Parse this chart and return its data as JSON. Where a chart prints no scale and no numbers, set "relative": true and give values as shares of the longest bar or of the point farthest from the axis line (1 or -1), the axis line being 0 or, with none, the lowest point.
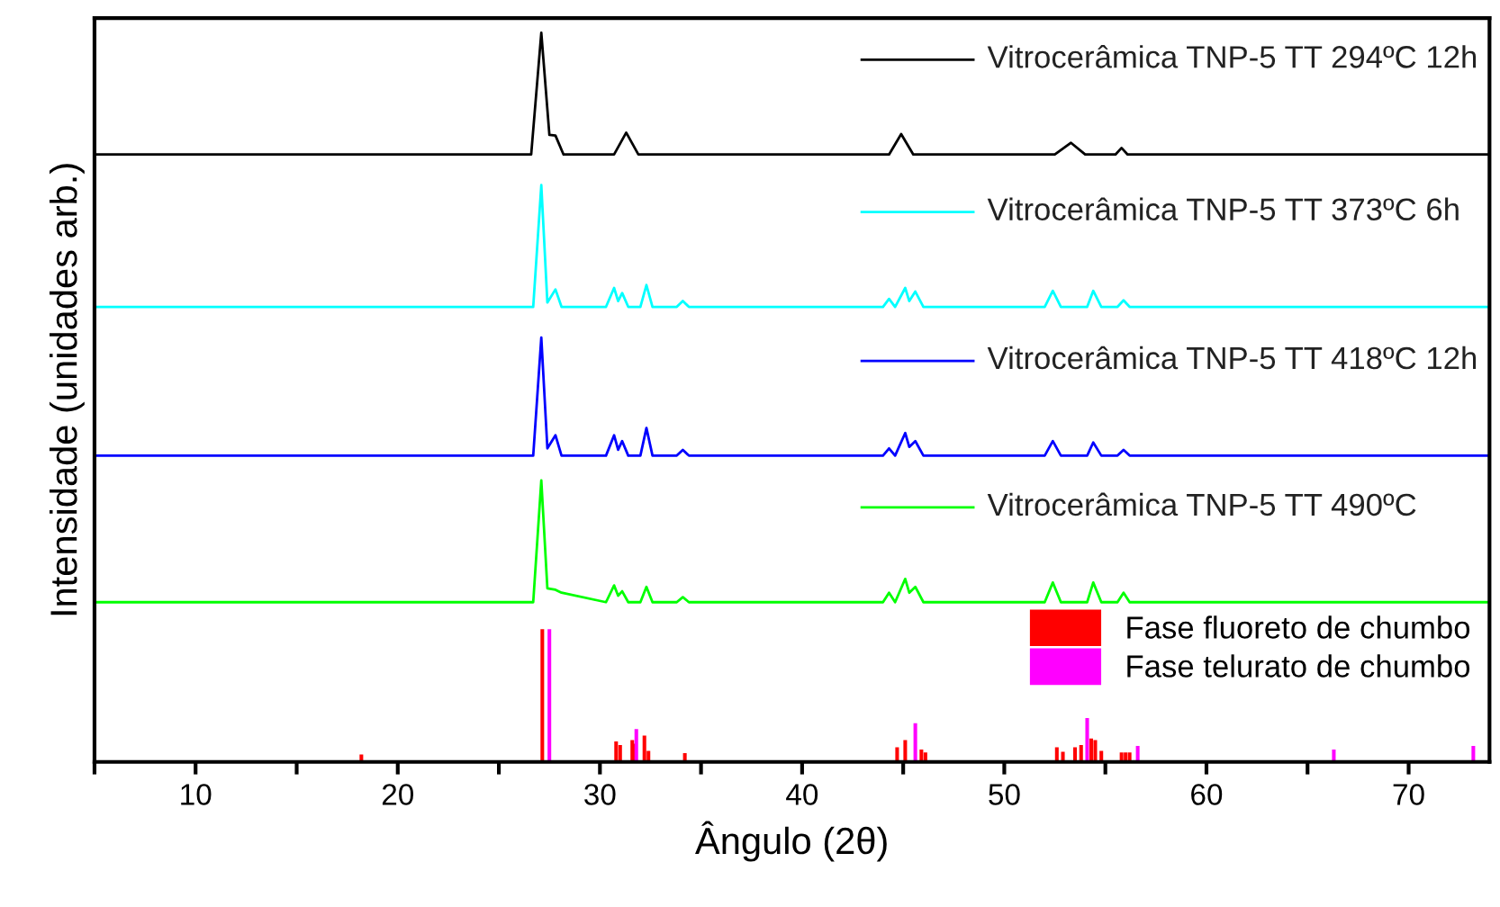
{
  "chart_data": {
    "type": "line",
    "relative": true,
    "xlabel": "Ângulo (2θ)",
    "ylabel": "Intensidade (unidades arb.)",
    "xlim": [
      5,
      74
    ],
    "xticks": [
      {
        "value": 5,
        "label": null
      },
      10,
      {
        "value": 15,
        "label": null
      },
      20,
      {
        "value": 25,
        "label": null
      },
      30,
      {
        "value": 35,
        "label": null
      },
      40,
      {
        "value": 45,
        "label": null
      },
      50,
      {
        "value": 55,
        "label": null
      },
      60,
      {
        "value": 65,
        "label": null
      },
      70
    ],
    "legend": "right",
    "grid": false,
    "line_style": "solid",
    "marker": "none",
    "series": [
      {
        "name": "Vitrocerâmica TNP-5 TT 294ºC 12h",
        "color": "#000000",
        "x": [
          5,
          26.6,
          27.1,
          27.5,
          27.8,
          28.2,
          30.7,
          31.3,
          31.9,
          44.3,
          44.9,
          45.5,
          52.5,
          53.3,
          54.0,
          55.5,
          55.8,
          56.1,
          74
        ],
        "values": [
          0.833,
          0.833,
          1.0,
          0.86,
          0.859,
          0.833,
          0.833,
          0.863,
          0.833,
          0.833,
          0.861,
          0.833,
          0.833,
          0.849,
          0.833,
          0.833,
          0.842,
          0.833,
          0.833
        ]
      },
      {
        "name": "Vitrocerâmica TNP-5 TT 373ºC 6h",
        "color": "#00ffff",
        "x": [
          5,
          26.7,
          27.1,
          27.4,
          27.8,
          28.1,
          30.3,
          30.7,
          30.9,
          31.1,
          31.4,
          32.0,
          32.3,
          32.6,
          33.8,
          34.1,
          34.4,
          44.0,
          44.3,
          44.6,
          45.1,
          45.3,
          45.6,
          46.0,
          52.0,
          52.4,
          52.8,
          54.1,
          54.4,
          54.8,
          55.6,
          55.9,
          56.2,
          74
        ],
        "values": [
          0.624,
          0.624,
          0.791,
          0.63,
          0.648,
          0.624,
          0.624,
          0.65,
          0.632,
          0.643,
          0.624,
          0.624,
          0.654,
          0.624,
          0.624,
          0.632,
          0.624,
          0.624,
          0.635,
          0.624,
          0.65,
          0.632,
          0.645,
          0.624,
          0.624,
          0.646,
          0.624,
          0.624,
          0.646,
          0.624,
          0.624,
          0.633,
          0.624,
          0.624
        ]
      },
      {
        "name": "Vitrocerâmica TNP-5 TT 418ºC 12h",
        "color": "#0000ff",
        "x": [
          5,
          26.7,
          27.1,
          27.4,
          27.8,
          28.1,
          30.3,
          30.7,
          30.9,
          31.1,
          31.4,
          32.0,
          32.3,
          32.6,
          33.8,
          34.1,
          34.4,
          44.0,
          44.3,
          44.6,
          45.1,
          45.3,
          45.6,
          46.0,
          52.0,
          52.4,
          52.8,
          54.1,
          54.4,
          54.8,
          55.6,
          55.9,
          56.2,
          74
        ],
        "values": [
          0.42,
          0.42,
          0.582,
          0.43,
          0.448,
          0.42,
          0.42,
          0.448,
          0.428,
          0.44,
          0.42,
          0.42,
          0.458,
          0.42,
          0.42,
          0.428,
          0.42,
          0.42,
          0.43,
          0.42,
          0.451,
          0.432,
          0.44,
          0.42,
          0.42,
          0.44,
          0.42,
          0.42,
          0.438,
          0.42,
          0.42,
          0.428,
          0.42,
          0.42
        ]
      },
      {
        "name": "Vitrocerâmica TNP-5 TT 490ºC",
        "color": "#00ff00",
        "x": [
          5,
          26.7,
          27.1,
          27.4,
          27.8,
          28.1,
          30.3,
          30.7,
          30.9,
          31.1,
          31.4,
          32.0,
          32.3,
          32.6,
          33.8,
          34.1,
          34.4,
          44.0,
          44.3,
          44.6,
          45.1,
          45.3,
          45.6,
          46.0,
          52.0,
          52.4,
          52.8,
          54.1,
          54.4,
          54.8,
          55.6,
          55.9,
          56.2,
          74
        ],
        "values": [
          0.219,
          0.219,
          0.386,
          0.238,
          0.236,
          0.232,
          0.219,
          0.242,
          0.228,
          0.234,
          0.219,
          0.219,
          0.24,
          0.219,
          0.219,
          0.226,
          0.219,
          0.219,
          0.232,
          0.219,
          0.251,
          0.232,
          0.24,
          0.219,
          0.219,
          0.246,
          0.219,
          0.219,
          0.246,
          0.219,
          0.219,
          0.232,
          0.219,
          0.219
        ]
      },
      {
        "name": "Fase fluoreto de chumbo",
        "color": "#ff0000",
        "type": "bar",
        "x": [
          18.2,
          27.15,
          30.8,
          31.0,
          31.6,
          31.7,
          32.2,
          32.4,
          34.2,
          44.7,
          45.1,
          45.9,
          46.1,
          52.6,
          52.9,
          53.5,
          53.8,
          54.3,
          54.5,
          54.8,
          55.8,
          56.0,
          56.2
        ],
        "values": [
          0.01,
          0.182,
          0.028,
          0.023,
          0.03,
          0.025,
          0.036,
          0.015,
          0.012,
          0.02,
          0.03,
          0.017,
          0.013,
          0.02,
          0.014,
          0.02,
          0.023,
          0.032,
          0.03,
          0.015,
          0.013,
          0.013,
          0.013
        ]
      },
      {
        "name": "Fase telurato de chumbo",
        "color": "#ff00ff",
        "type": "bar",
        "x": [
          27.5,
          31.8,
          45.6,
          54.1,
          56.6,
          66.3,
          73.2
        ],
        "values": [
          0.182,
          0.045,
          0.053,
          0.06,
          0.022,
          0.017,
          0.022
        ]
      }
    ]
  }
}
